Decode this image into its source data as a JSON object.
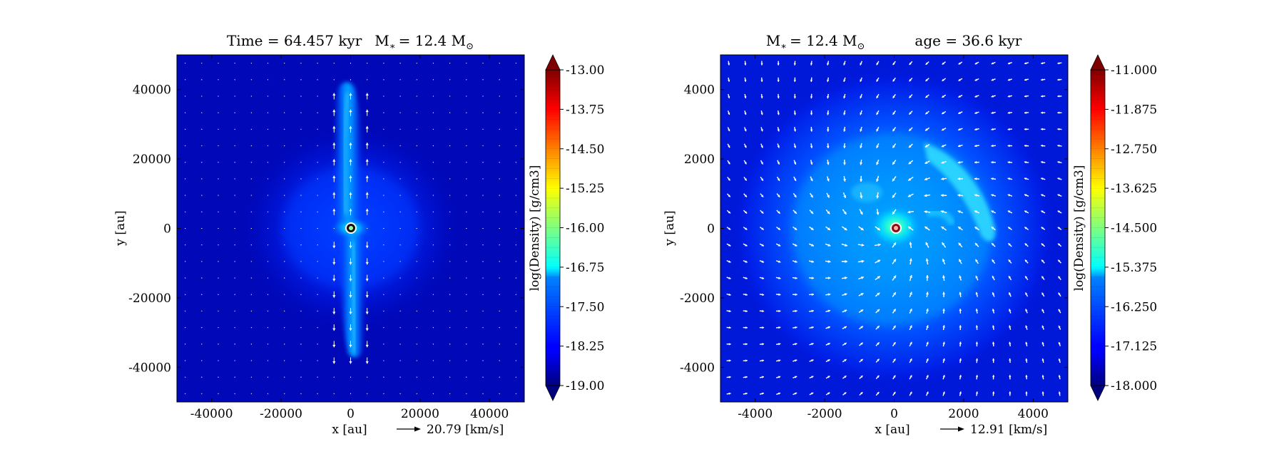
{
  "chart_data": [
    {
      "type": "heatmap",
      "title_parts": {
        "time": "Time = 64.457 kyr",
        "mstar_prefix": "M",
        "mstar_sub": "∗",
        "mstar_value": "= 12.4 M",
        "mstar_sun": "⊙"
      },
      "xlabel": "x [au]",
      "ylabel": "y [au]",
      "xlim": [
        -50000,
        50000
      ],
      "ylim": [
        -50000,
        50000
      ],
      "xticks": [
        -40000,
        -20000,
        0,
        20000,
        40000
      ],
      "yticks": [
        -40000,
        -20000,
        0,
        20000,
        40000
      ],
      "xtick_labels": [
        "-40000",
        "-20000",
        "0",
        "20000",
        "40000"
      ],
      "ytick_labels": [
        "-40000",
        "-20000",
        "0",
        "20000",
        "40000"
      ],
      "colorbar": {
        "label": "log(Density) [g/cm3]",
        "range": [
          -19.0,
          -13.0
        ],
        "ticks": [
          -13.0,
          -13.75,
          -14.5,
          -15.25,
          -16.0,
          -16.75,
          -17.5,
          -18.25,
          -19.0
        ],
        "tick_labels": [
          "-13.00",
          "-13.75",
          "-14.50",
          "-15.25",
          "-16.00",
          "-16.75",
          "-17.50",
          "-18.25",
          "-19.00"
        ],
        "colormap": "jet",
        "extend": "both"
      },
      "velocity_key": {
        "value": "20.79",
        "unit": "[km/s]"
      },
      "features": {
        "star": {
          "x": 0,
          "y": 0
        },
        "outflow": "bipolar lobes along y-axis extending to about ±40000 au",
        "envelope_log_density": -18.7,
        "core_log_density": -16.0
      }
    },
    {
      "type": "heatmap",
      "title_parts": {
        "mstar_prefix": "M",
        "mstar_sub": "∗",
        "mstar_value": "= 12.4 M",
        "mstar_sun": "⊙",
        "age": "age = 36.6 kyr"
      },
      "xlabel": "x [au]",
      "ylabel": "y [au]",
      "xlim": [
        -5000,
        5000
      ],
      "ylim": [
        -5000,
        5000
      ],
      "xticks": [
        -4000,
        -2000,
        0,
        2000,
        4000
      ],
      "yticks": [
        -4000,
        -2000,
        0,
        2000,
        4000
      ],
      "xtick_labels": [
        "-4000",
        "-2000",
        "0",
        "2000",
        "4000"
      ],
      "ytick_labels": [
        "-4000",
        "-2000",
        "0",
        "2000",
        "4000"
      ],
      "colorbar": {
        "label": "log(Density) [g/cm3]",
        "range": [
          -18.0,
          -11.0
        ],
        "ticks": [
          -11.0,
          -11.875,
          -12.75,
          -13.625,
          -14.5,
          -15.375,
          -16.25,
          -17.125,
          -18.0
        ],
        "tick_labels": [
          "-11.000",
          "-11.875",
          "-12.750",
          "-13.625",
          "-14.500",
          "-15.375",
          "-16.250",
          "-17.125",
          "-18.000"
        ],
        "colormap": "jet",
        "extend": "both"
      },
      "velocity_key": {
        "value": "12.91",
        "unit": "[km/s]"
      },
      "features": {
        "star": {
          "x": 0,
          "y": 0
        },
        "envelope_log_density": -17.3,
        "core_log_density": -14.0,
        "spiral_arm": "bright filament toward upper right, near x≈1500–2800 au, y≈500–2500 au"
      }
    }
  ]
}
